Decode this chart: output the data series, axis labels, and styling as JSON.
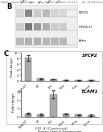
{
  "header_text": "Human Papillomavirus Reactivation     May 8, 2013     Volume 12 p.1-4     doi: 10.4161/oncotar.xx",
  "footer_text": "FIG. 4 (Continued)",
  "panel_b_label": "B",
  "panel_c_label": "C",
  "western_blot_labels": [
    "SYCP2",
    "HPV16 E7",
    "Actin"
  ],
  "sycp2_title": "SYCP2",
  "tcam1_title": "TCAM1",
  "xlabel": "Primary Cervical Keratinocytes",
  "ylabel": "Fold change",
  "categories": [
    "SiHA-E7",
    "E7",
    "Erk",
    "Mock",
    "Mrna",
    "Siena"
  ],
  "sycp2_values": [
    8.2,
    0.9,
    0.7,
    0.4,
    0.3,
    0.3
  ],
  "tcam1_values": [
    0.4,
    0.3,
    2.8,
    0.35,
    0.25,
    0.2
  ],
  "bar_color": "#aaaaaa",
  "error_color": "#333333",
  "sycp2_errors": [
    1.0,
    0.15,
    0.12,
    0.08,
    0.08,
    0.08
  ],
  "tcam1_errors": [
    0.08,
    0.08,
    0.5,
    0.08,
    0.06,
    0.05
  ],
  "bg_color": "#ffffff",
  "text_color": "#222222",
  "header_fontsize": 2.2,
  "footer_fontsize": 3.2,
  "panel_label_fontsize": 6,
  "axis_fontsize": 3.2,
  "title_fontsize": 4.0,
  "blot_bg": "#e8e8e8",
  "band1_color": "#d0d0d0",
  "band2_color": "#b0b0b0",
  "band3_color": "#c0c0c0",
  "dark_band_color": "#606060",
  "sample_labels": [
    "SiHA-E7",
    "E7",
    "Erk",
    "Mock",
    "Mrna"
  ]
}
